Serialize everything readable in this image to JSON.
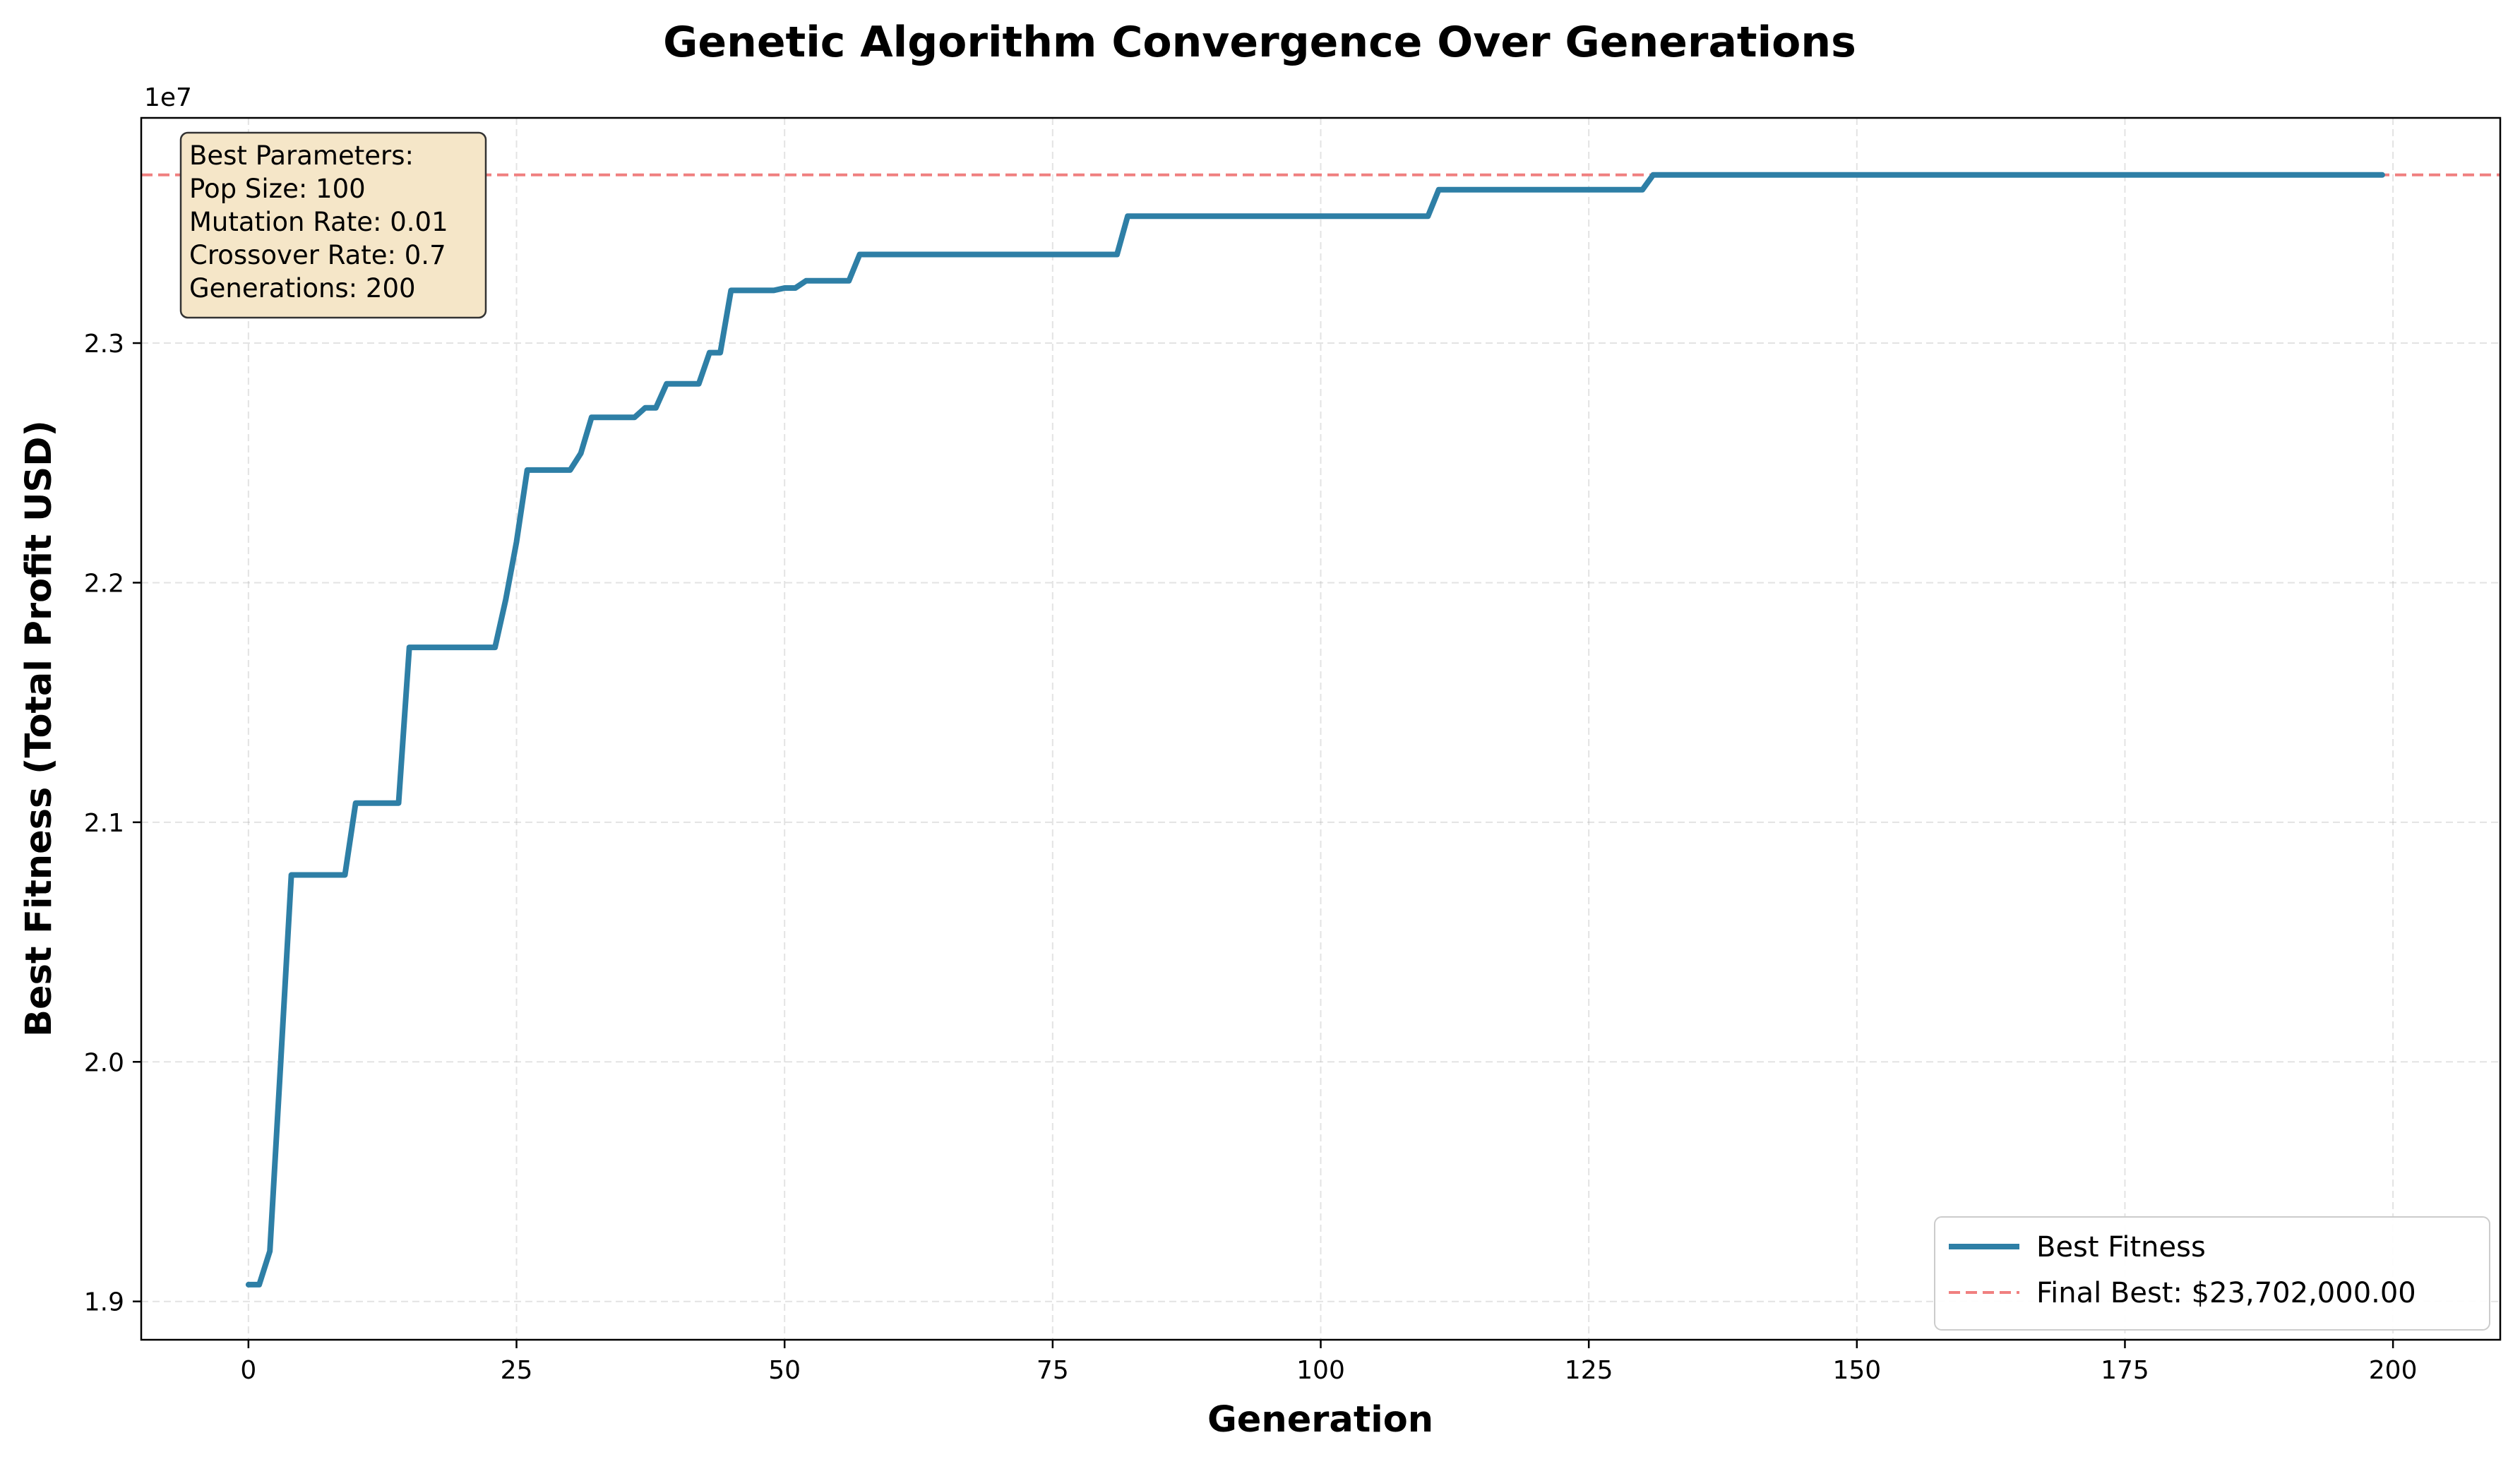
{
  "chart_data": {
    "type": "line",
    "title": "Genetic Algorithm Convergence Over Generations",
    "xlabel": "Generation",
    "ylabel": "Best Fitness (Total Profit USD)",
    "y_offset_label": "1e7",
    "xlim": [
      -10,
      210
    ],
    "ylim": [
      18840000,
      23940000
    ],
    "x_ticks": [
      0,
      25,
      50,
      75,
      100,
      125,
      150,
      175,
      200
    ],
    "x_tick_labels": [
      "0",
      "25",
      "50",
      "75",
      "100",
      "125",
      "150",
      "175",
      "200"
    ],
    "y_ticks": [
      19000000,
      20000000,
      21000000,
      22000000,
      23000000
    ],
    "y_tick_labels": [
      "1.9",
      "2.0",
      "2.1",
      "2.2",
      "2.3"
    ],
    "grid": true,
    "legend_position": "bottom-right",
    "series": [
      {
        "name": "Best Fitness",
        "color": "#2e7fa6",
        "style": "solid",
        "points": [
          [
            0,
            19070000
          ],
          [
            1,
            19070000
          ],
          [
            2,
            19210000
          ],
          [
            3,
            19990000
          ],
          [
            4,
            20780000
          ],
          [
            9,
            20780000
          ],
          [
            10,
            21080000
          ],
          [
            14,
            21080000
          ],
          [
            15,
            21730000
          ],
          [
            23,
            21730000
          ],
          [
            24,
            21930000
          ],
          [
            25,
            22170000
          ],
          [
            26,
            22470000
          ],
          [
            30,
            22470000
          ],
          [
            31,
            22540000
          ],
          [
            32,
            22690000
          ],
          [
            36,
            22690000
          ],
          [
            37,
            22730000
          ],
          [
            38,
            22730000
          ],
          [
            39,
            22830000
          ],
          [
            42,
            22830000
          ],
          [
            43,
            22960000
          ],
          [
            44,
            22960000
          ],
          [
            45,
            23220000
          ],
          [
            49,
            23220000
          ],
          [
            50,
            23230000
          ],
          [
            51,
            23230000
          ],
          [
            52,
            23260000
          ],
          [
            56,
            23260000
          ],
          [
            57,
            23370000
          ],
          [
            81,
            23370000
          ],
          [
            82,
            23530000
          ],
          [
            110,
            23530000
          ],
          [
            111,
            23640000
          ],
          [
            130,
            23640000
          ],
          [
            131,
            23702000
          ],
          [
            199,
            23702000
          ]
        ]
      },
      {
        "name": "Final Best: $23,702,000.00",
        "color": "#f08080",
        "style": "dashed",
        "y": 23702000
      }
    ],
    "annotation": {
      "lines": [
        "Best Parameters:",
        "Pop Size: 100",
        "Mutation Rate: 0.01",
        "Crossover Rate: 0.7",
        "Generations: 200"
      ],
      "background": "#f5e6c8"
    }
  }
}
